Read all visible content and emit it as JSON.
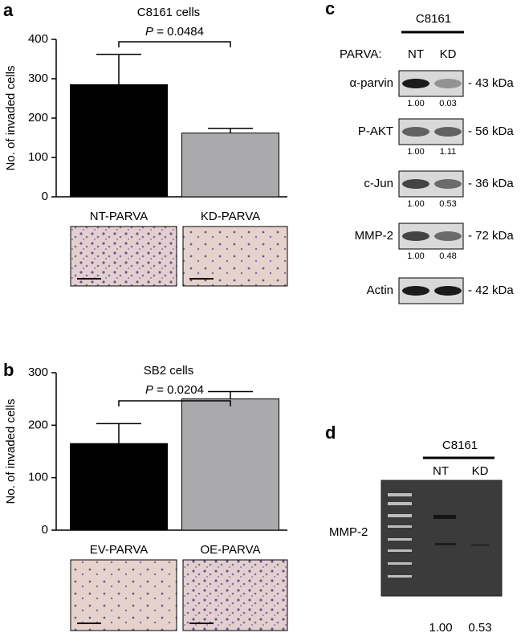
{
  "chart_data": [
    {
      "type": "bar",
      "panel_label": "a",
      "title": "C8161 cells",
      "y_label": "No. of invaded cells",
      "categories": [
        "NT-PARVA",
        "KD-PARVA"
      ],
      "values": [
        285,
        162
      ],
      "errors": [
        77,
        12
      ],
      "colors": [
        "#000000",
        "#aaaaad"
      ],
      "ylim": [
        0,
        400
      ],
      "yticks": [
        0,
        100,
        200,
        300,
        400
      ],
      "annotation": {
        "italic": "P",
        "text": "= 0.0484"
      }
    },
    {
      "type": "bar",
      "panel_label": "b",
      "title": "SB2 cells",
      "y_label": "No. of invaded cells",
      "categories": [
        "EV-PARVA",
        "OE-PARVA"
      ],
      "values": [
        165,
        250
      ],
      "errors": [
        38,
        14
      ],
      "colors": [
        "#000000",
        "#aaaaad"
      ],
      "ylim": [
        0,
        300
      ],
      "yticks": [
        0,
        100,
        200,
        300
      ],
      "annotation": {
        "italic": "P",
        "text": "= 0.0204"
      }
    }
  ],
  "blot": {
    "panel_label": "c",
    "cell_line": "C8161",
    "group_label": "PARVA:",
    "lanes": [
      "NT",
      "KD"
    ],
    "rows": [
      {
        "protein": "α-parvin",
        "size": "- 43 kDa",
        "quant": [
          "1.00",
          "0.03"
        ]
      },
      {
        "protein": "P-AKT",
        "size": "- 56 kDa",
        "quant": [
          "1.00",
          "1.11"
        ]
      },
      {
        "protein": "c-Jun",
        "size": "- 36 kDa",
        "quant": [
          "1.00",
          "0.53"
        ]
      },
      {
        "protein": "MMP-2",
        "size": "- 72 kDa",
        "quant": [
          "1.00",
          "0.48"
        ]
      },
      {
        "protein": "Actin",
        "size": "- 42 kDa",
        "quant": []
      }
    ]
  },
  "zymogram": {
    "panel_label": "d",
    "cell_line": "C8161",
    "lanes": [
      "NT",
      "KD"
    ],
    "band_label": "MMP-2",
    "quant": [
      "1.00",
      "0.53"
    ]
  }
}
